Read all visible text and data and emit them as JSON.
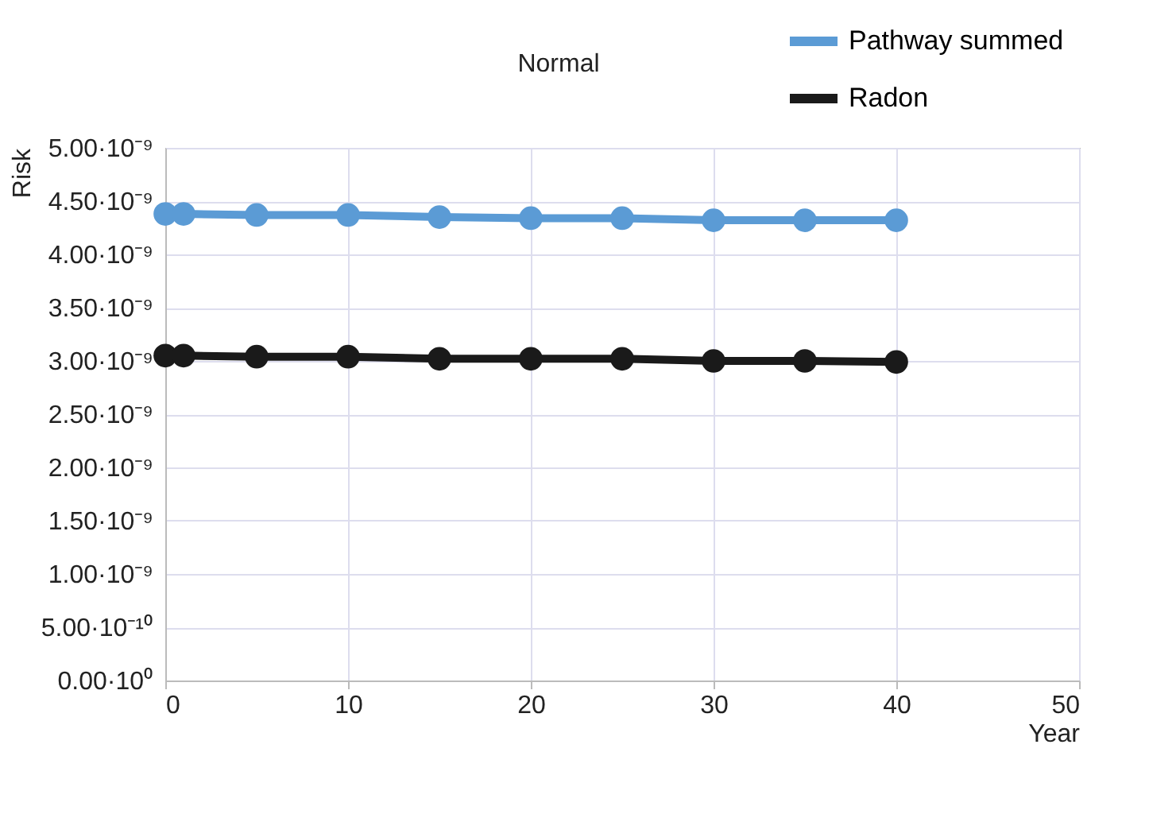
{
  "chart_data": {
    "type": "line",
    "title": "Normal",
    "xlabel": "Year",
    "ylabel": "Risk",
    "x": [
      0,
      1,
      5,
      10,
      15,
      20,
      25,
      30,
      35,
      40
    ],
    "series": [
      {
        "name": "Pathway summed",
        "color": "#5b9bd5",
        "values": [
          4.38e-09,
          4.38e-09,
          4.37e-09,
          4.37e-09,
          4.35e-09,
          4.34e-09,
          4.34e-09,
          4.32e-09,
          4.32e-09,
          4.32e-09
        ]
      },
      {
        "name": "Radon",
        "color": "#1a1a1a",
        "values": [
          3.05e-09,
          3.05e-09,
          3.04e-09,
          3.04e-09,
          3.02e-09,
          3.02e-09,
          3.02e-09,
          3e-09,
          3e-09,
          2.99e-09
        ]
      }
    ],
    "xlim": [
      0,
      50
    ],
    "xticks": [
      0,
      10,
      20,
      30,
      40,
      50
    ],
    "ylim": [
      0,
      5e-09
    ],
    "yticks": [
      {
        "value": 0,
        "label": "0.00·10⁰"
      },
      {
        "value": 5e-10,
        "label": "5.00·10⁻¹⁰"
      },
      {
        "value": 1e-09,
        "label": "1.00·10⁻⁹"
      },
      {
        "value": 1.5e-09,
        "label": "1.50·10⁻⁹"
      },
      {
        "value": 2e-09,
        "label": "2.00·10⁻⁹"
      },
      {
        "value": 2.5e-09,
        "label": "2.50·10⁻⁹"
      },
      {
        "value": 3e-09,
        "label": "3.00·10⁻⁹"
      },
      {
        "value": 3.5e-09,
        "label": "3.50·10⁻⁹"
      },
      {
        "value": 4e-09,
        "label": "4.00·10⁻⁹"
      },
      {
        "value": 4.5e-09,
        "label": "4.50·10⁻⁹"
      },
      {
        "value": 5e-09,
        "label": "5.00·10⁻⁹"
      }
    ],
    "grid": true,
    "legend": "top right",
    "marker": "circle",
    "line_style": "solid"
  }
}
